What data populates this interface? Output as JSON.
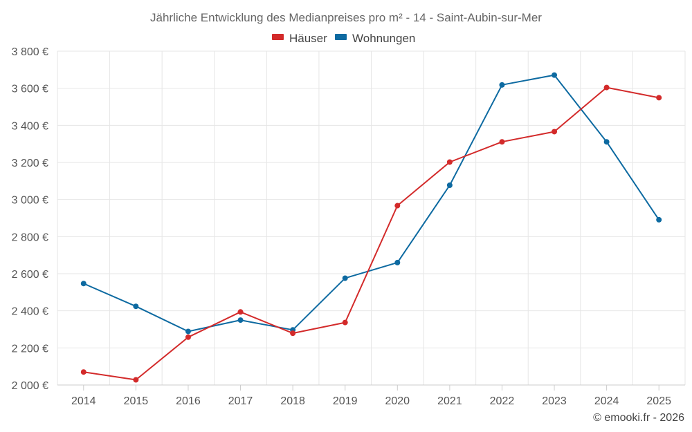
{
  "chart_data": {
    "type": "line",
    "title": "Jährliche Entwicklung des Medianpreises pro m² - 14 - Saint-Aubin-sur-Mer",
    "categories": [
      "2014",
      "2015",
      "2016",
      "2017",
      "2018",
      "2019",
      "2020",
      "2021",
      "2022",
      "2023",
      "2024",
      "2025"
    ],
    "series": [
      {
        "name": "Häuser",
        "color": "#d32a2a",
        "values": [
          2070,
          2028,
          2258,
          2394,
          2279,
          2337,
          2967,
          3202,
          3311,
          3366,
          3604,
          3549
        ]
      },
      {
        "name": "Wohnungen",
        "color": "#0d6aa1",
        "values": [
          2547,
          2424,
          2289,
          2350,
          2297,
          2576,
          2660,
          3077,
          3618,
          3671,
          3311,
          2891
        ]
      }
    ],
    "ylim": [
      2000,
      3800
    ],
    "yticks": [
      2000,
      2200,
      2400,
      2600,
      2800,
      3000,
      3200,
      3400,
      3600,
      3800
    ],
    "ytick_labels": [
      "2 000 €",
      "2 200 €",
      "2 400 €",
      "2 600 €",
      "2 800 €",
      "3 000 €",
      "3 200 €",
      "3 400 €",
      "3 600 €",
      "3 800 €"
    ],
    "xlabel": "",
    "ylabel": "",
    "grid": true,
    "legend_position": "top-center"
  },
  "credit": "© emooki.fr - 2026"
}
